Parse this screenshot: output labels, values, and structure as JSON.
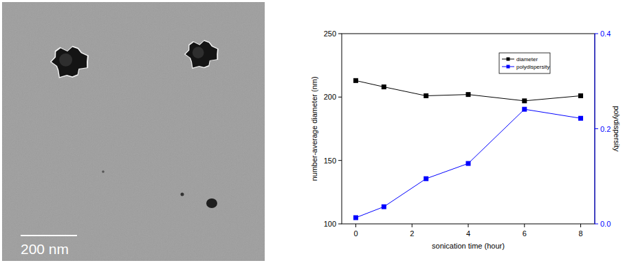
{
  "micrograph": {
    "scale_bar": "200 nm"
  },
  "chart_data": {
    "type": "line",
    "x_label": "sonication time (hour)",
    "y_label": "number-average diameter (nm)",
    "y2_label": "polydispersity",
    "x": [
      0,
      1,
      2.5,
      4,
      6,
      8
    ],
    "xlim": [
      -0.5,
      8.5
    ],
    "xticks": [
      0,
      2,
      4,
      6,
      8
    ],
    "ylim": [
      100,
      250
    ],
    "yticks": [
      100,
      150,
      200,
      250
    ],
    "y2lim": [
      0,
      0.4
    ],
    "y2ticks": [
      {
        "value": 0,
        "label": "0.0"
      },
      {
        "value": 0.2,
        "label": "0.2"
      },
      {
        "value": 0.4,
        "label": "0.4"
      }
    ],
    "legend": "upper right",
    "grid": false,
    "series": [
      {
        "name": "diameter",
        "color": "#000000",
        "marker": "square",
        "line_style": "solid",
        "values": [
          213,
          208,
          201,
          202,
          197,
          201
        ]
      },
      {
        "name": "polydispersity",
        "color": "#0000ff",
        "marker": "square",
        "line_style": "solid",
        "axis": "y2",
        "values": [
          0.013,
          0.036,
          0.095,
          0.127,
          0.241,
          0.222
        ]
      }
    ]
  }
}
